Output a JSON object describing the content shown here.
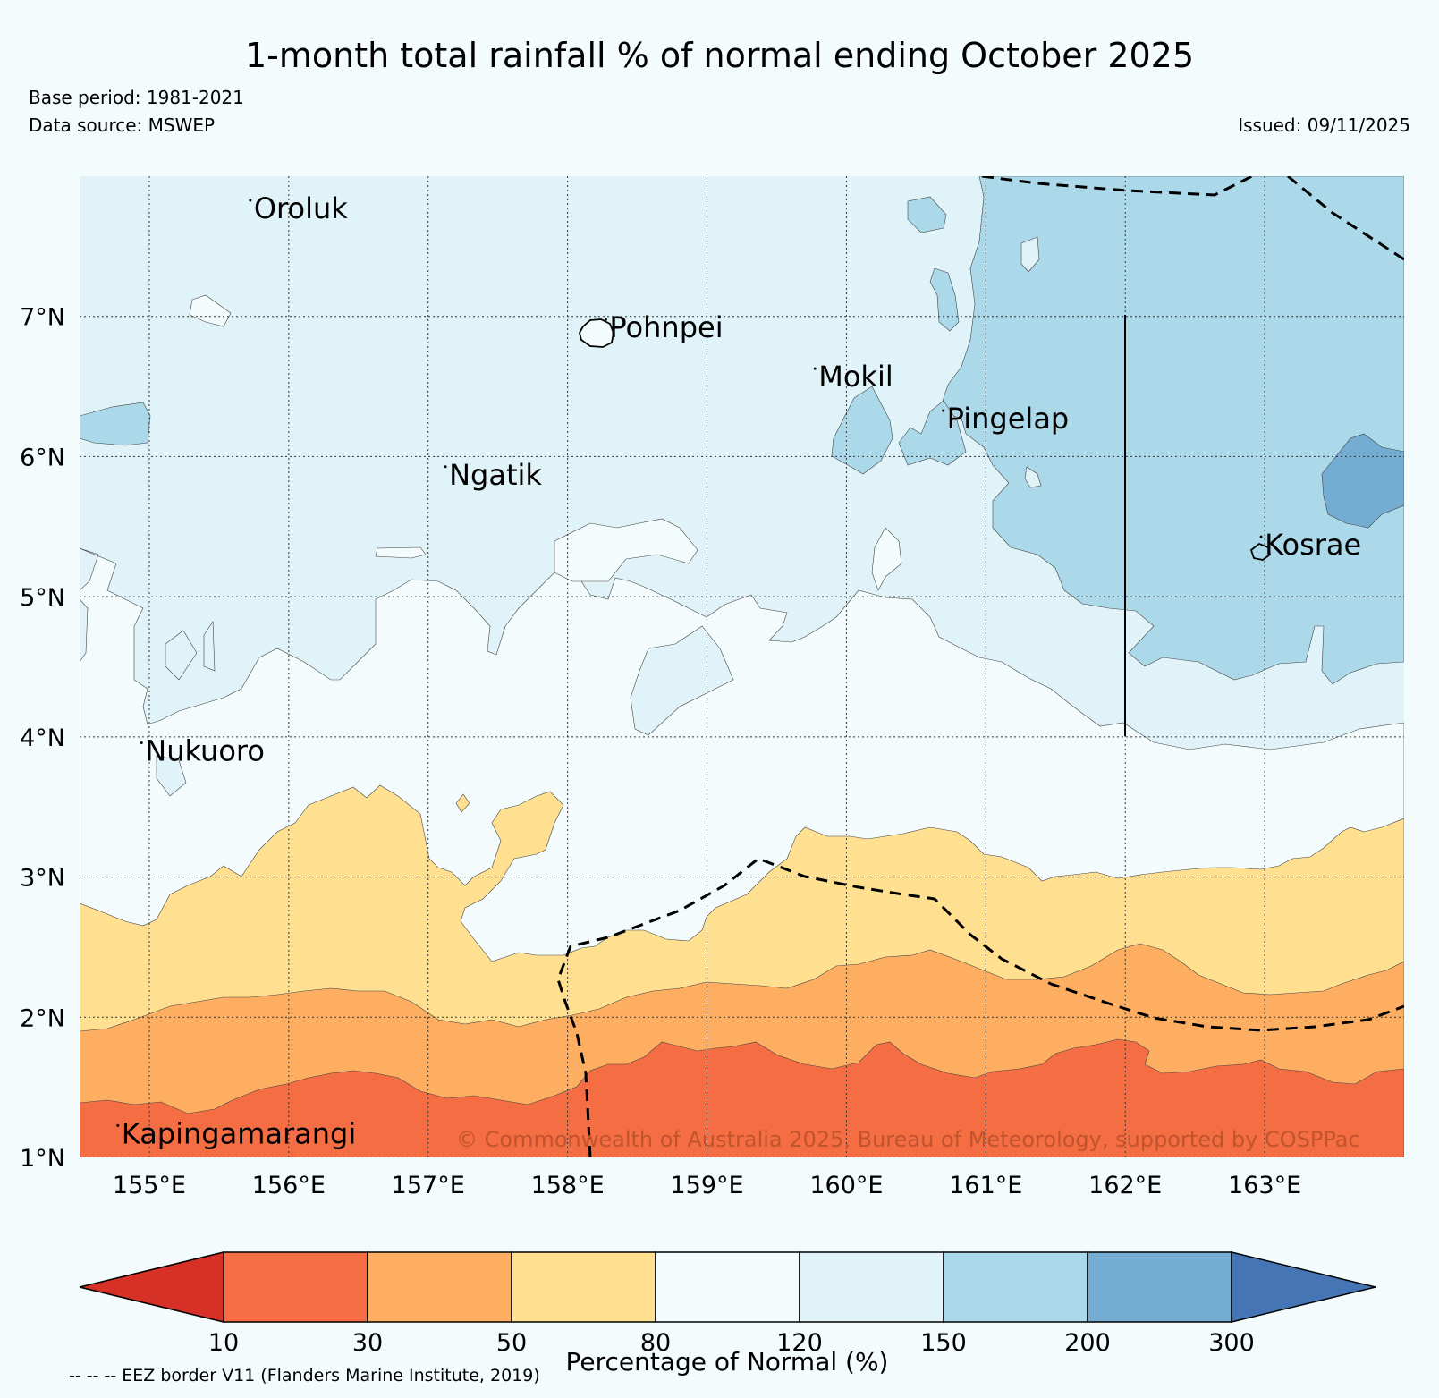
{
  "title": "1-month total rainfall % of normal ending October 2025",
  "base_period": "Base period: 1981-2021",
  "data_source": "Data source: MSWEP",
  "issued": "Issued: 09/11/2025",
  "copyright": "© Commonwealth of Australia 2025, Bureau of Meteorology, supported by COSPPac",
  "map": {
    "lon_range": [
      154.5,
      164.0
    ],
    "lat_range": [
      1.0,
      8.0
    ],
    "lon_ticks": [
      {
        "value": 155,
        "label": "155°E"
      },
      {
        "value": 156,
        "label": "156°E"
      },
      {
        "value": 157,
        "label": "157°E"
      },
      {
        "value": 158,
        "label": "158°E"
      },
      {
        "value": 159,
        "label": "159°E"
      },
      {
        "value": 160,
        "label": "160°E"
      },
      {
        "value": 161,
        "label": "161°E"
      },
      {
        "value": 162,
        "label": "162°E"
      },
      {
        "value": 163,
        "label": "163°E"
      }
    ],
    "lat_ticks": [
      {
        "value": 1,
        "label": "1°N"
      },
      {
        "value": 2,
        "label": "2°N"
      },
      {
        "value": 3,
        "label": "3°N"
      },
      {
        "value": 4,
        "label": "4°N"
      },
      {
        "value": 5,
        "label": "5°N"
      },
      {
        "value": 6,
        "label": "6°N"
      },
      {
        "value": 7,
        "label": "7°N"
      }
    ],
    "places": [
      {
        "name": "Oroluk",
        "lon": 155.75,
        "lat": 7.7
      },
      {
        "name": "Pohnpei",
        "lon": 158.3,
        "lat": 6.85
      },
      {
        "name": "Mokil",
        "lon": 159.8,
        "lat": 6.5
      },
      {
        "name": "Pingelap",
        "lon": 160.72,
        "lat": 6.2
      },
      {
        "name": "Ngatik",
        "lon": 157.15,
        "lat": 5.8
      },
      {
        "name": "Kosrae",
        "lon": 163.0,
        "lat": 5.3
      },
      {
        "name": "Nukuoro",
        "lon": 154.97,
        "lat": 3.83
      },
      {
        "name": "Kapingamarangi",
        "lon": 154.8,
        "lat": 1.1
      }
    ]
  },
  "colorbar": {
    "title": "Percentage of Normal (%)",
    "ticks": [
      "10",
      "30",
      "50",
      "80",
      "120",
      "150",
      "200",
      "300"
    ],
    "colors": {
      "below_10": "#d73027",
      "10_30": "#f46d43",
      "30_50": "#fdae61",
      "50_80": "#fee090",
      "80_120": "#f4fbfd",
      "120_150": "#e0f3f8",
      "150_200": "#abd9e9",
      "200_300": "#74add1",
      "above_300": "#4575b4"
    }
  },
  "eez_note": "-- -- -- EEZ border V11 (Flanders Marine Institute, 2019)"
}
